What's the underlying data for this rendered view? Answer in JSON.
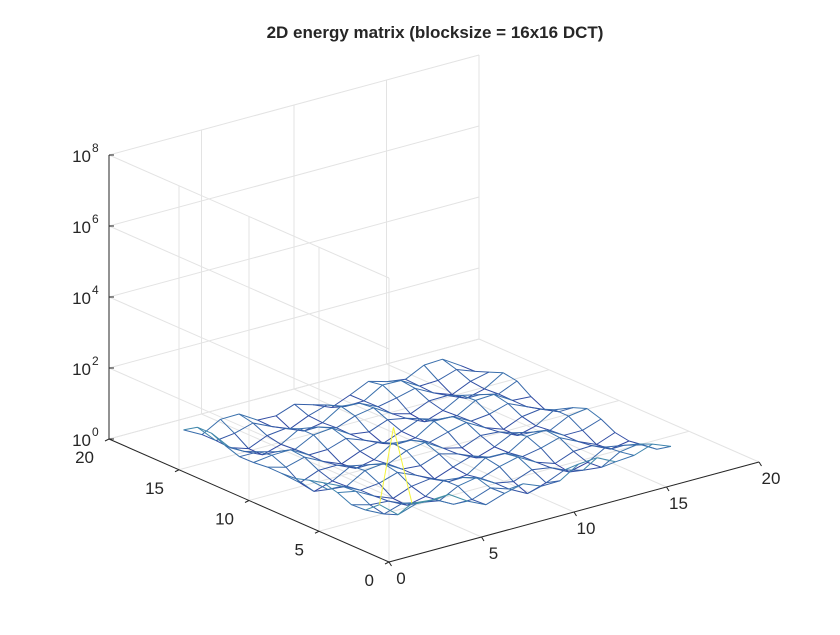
{
  "figure": {
    "title": "2D energy matrix (blocksize = 16x16 DCT)"
  },
  "chart_data": {
    "type": "surface-mesh",
    "title": "2D energy matrix (blocksize = 16x16 DCT)",
    "xlabel": "",
    "ylabel": "",
    "zlabel": "",
    "x_ticks": [
      0,
      5,
      10,
      15,
      20
    ],
    "y_ticks": [
      0,
      5,
      10,
      15,
      20
    ],
    "z_ticks": [
      {
        "base": "10",
        "exp": "0",
        "value": 1
      },
      {
        "base": "10",
        "exp": "2",
        "value": 100
      },
      {
        "base": "10",
        "exp": "4",
        "value": 10000
      },
      {
        "base": "10",
        "exp": "6",
        "value": 1000000
      },
      {
        "base": "10",
        "exp": "8",
        "value": 100000000
      }
    ],
    "xlim": [
      0,
      20
    ],
    "ylim": [
      0,
      20
    ],
    "zlim": [
      1,
      100000000
    ],
    "z_scale": "log",
    "grid": true,
    "box": false,
    "mesh_extent": {
      "x": [
        1,
        16
      ],
      "y": [
        1,
        16
      ]
    },
    "peak": {
      "x": 1,
      "y": 1,
      "z": 3000
    },
    "typical_log10_energy": 0.6,
    "colormap": [
      "#1f1a66",
      "#2c3a9e",
      "#3d7fb0",
      "#4fb68a",
      "#c8d84a",
      "#f5f53c"
    ],
    "colors": {
      "axis": "#262626",
      "grid": "#e3e3e3",
      "background": "#ffffff"
    }
  }
}
